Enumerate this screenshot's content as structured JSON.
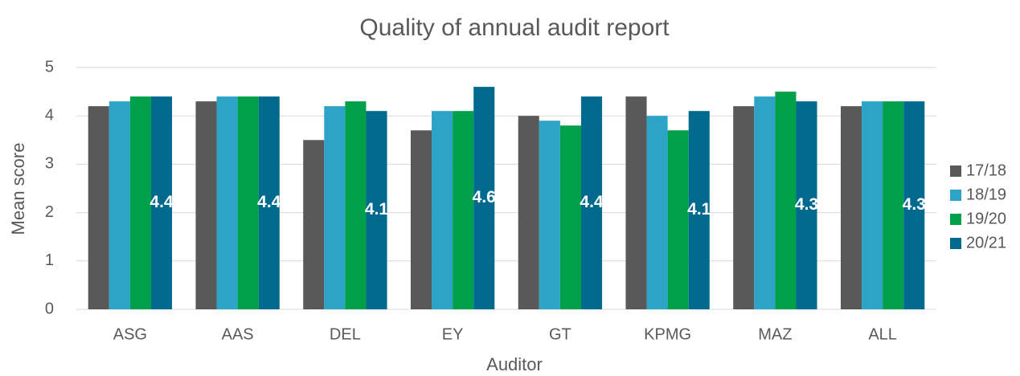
{
  "chart_data": {
    "type": "bar",
    "title": "Quality of annual audit report",
    "x_label": "Auditor",
    "y_label": "Mean score",
    "categories": [
      "ASG",
      "AAS",
      "DEL",
      "EY",
      "GT",
      "KPMG",
      "MAZ",
      "ALL"
    ],
    "series": [
      {
        "name": "17/18",
        "color": "#595959",
        "values": [
          4.2,
          4.3,
          3.5,
          3.7,
          4.0,
          4.4,
          4.2,
          4.2
        ]
      },
      {
        "name": "18/19",
        "color": "#2ea3c8",
        "values": [
          4.3,
          4.4,
          4.2,
          4.1,
          3.9,
          4.0,
          4.4,
          4.3
        ]
      },
      {
        "name": "19/20",
        "color": "#00a04a",
        "values": [
          4.4,
          4.4,
          4.3,
          4.1,
          3.8,
          3.7,
          4.5,
          4.3
        ]
      },
      {
        "name": "20/21",
        "color": "#006a8e",
        "values": [
          4.4,
          4.4,
          4.1,
          4.6,
          4.4,
          4.1,
          4.3,
          4.3
        ],
        "data_labels": true
      }
    ],
    "ylim": [
      0,
      5
    ],
    "yticks": [
      0,
      1,
      2,
      3,
      4,
      5
    ],
    "grid": true,
    "legend": "right"
  }
}
